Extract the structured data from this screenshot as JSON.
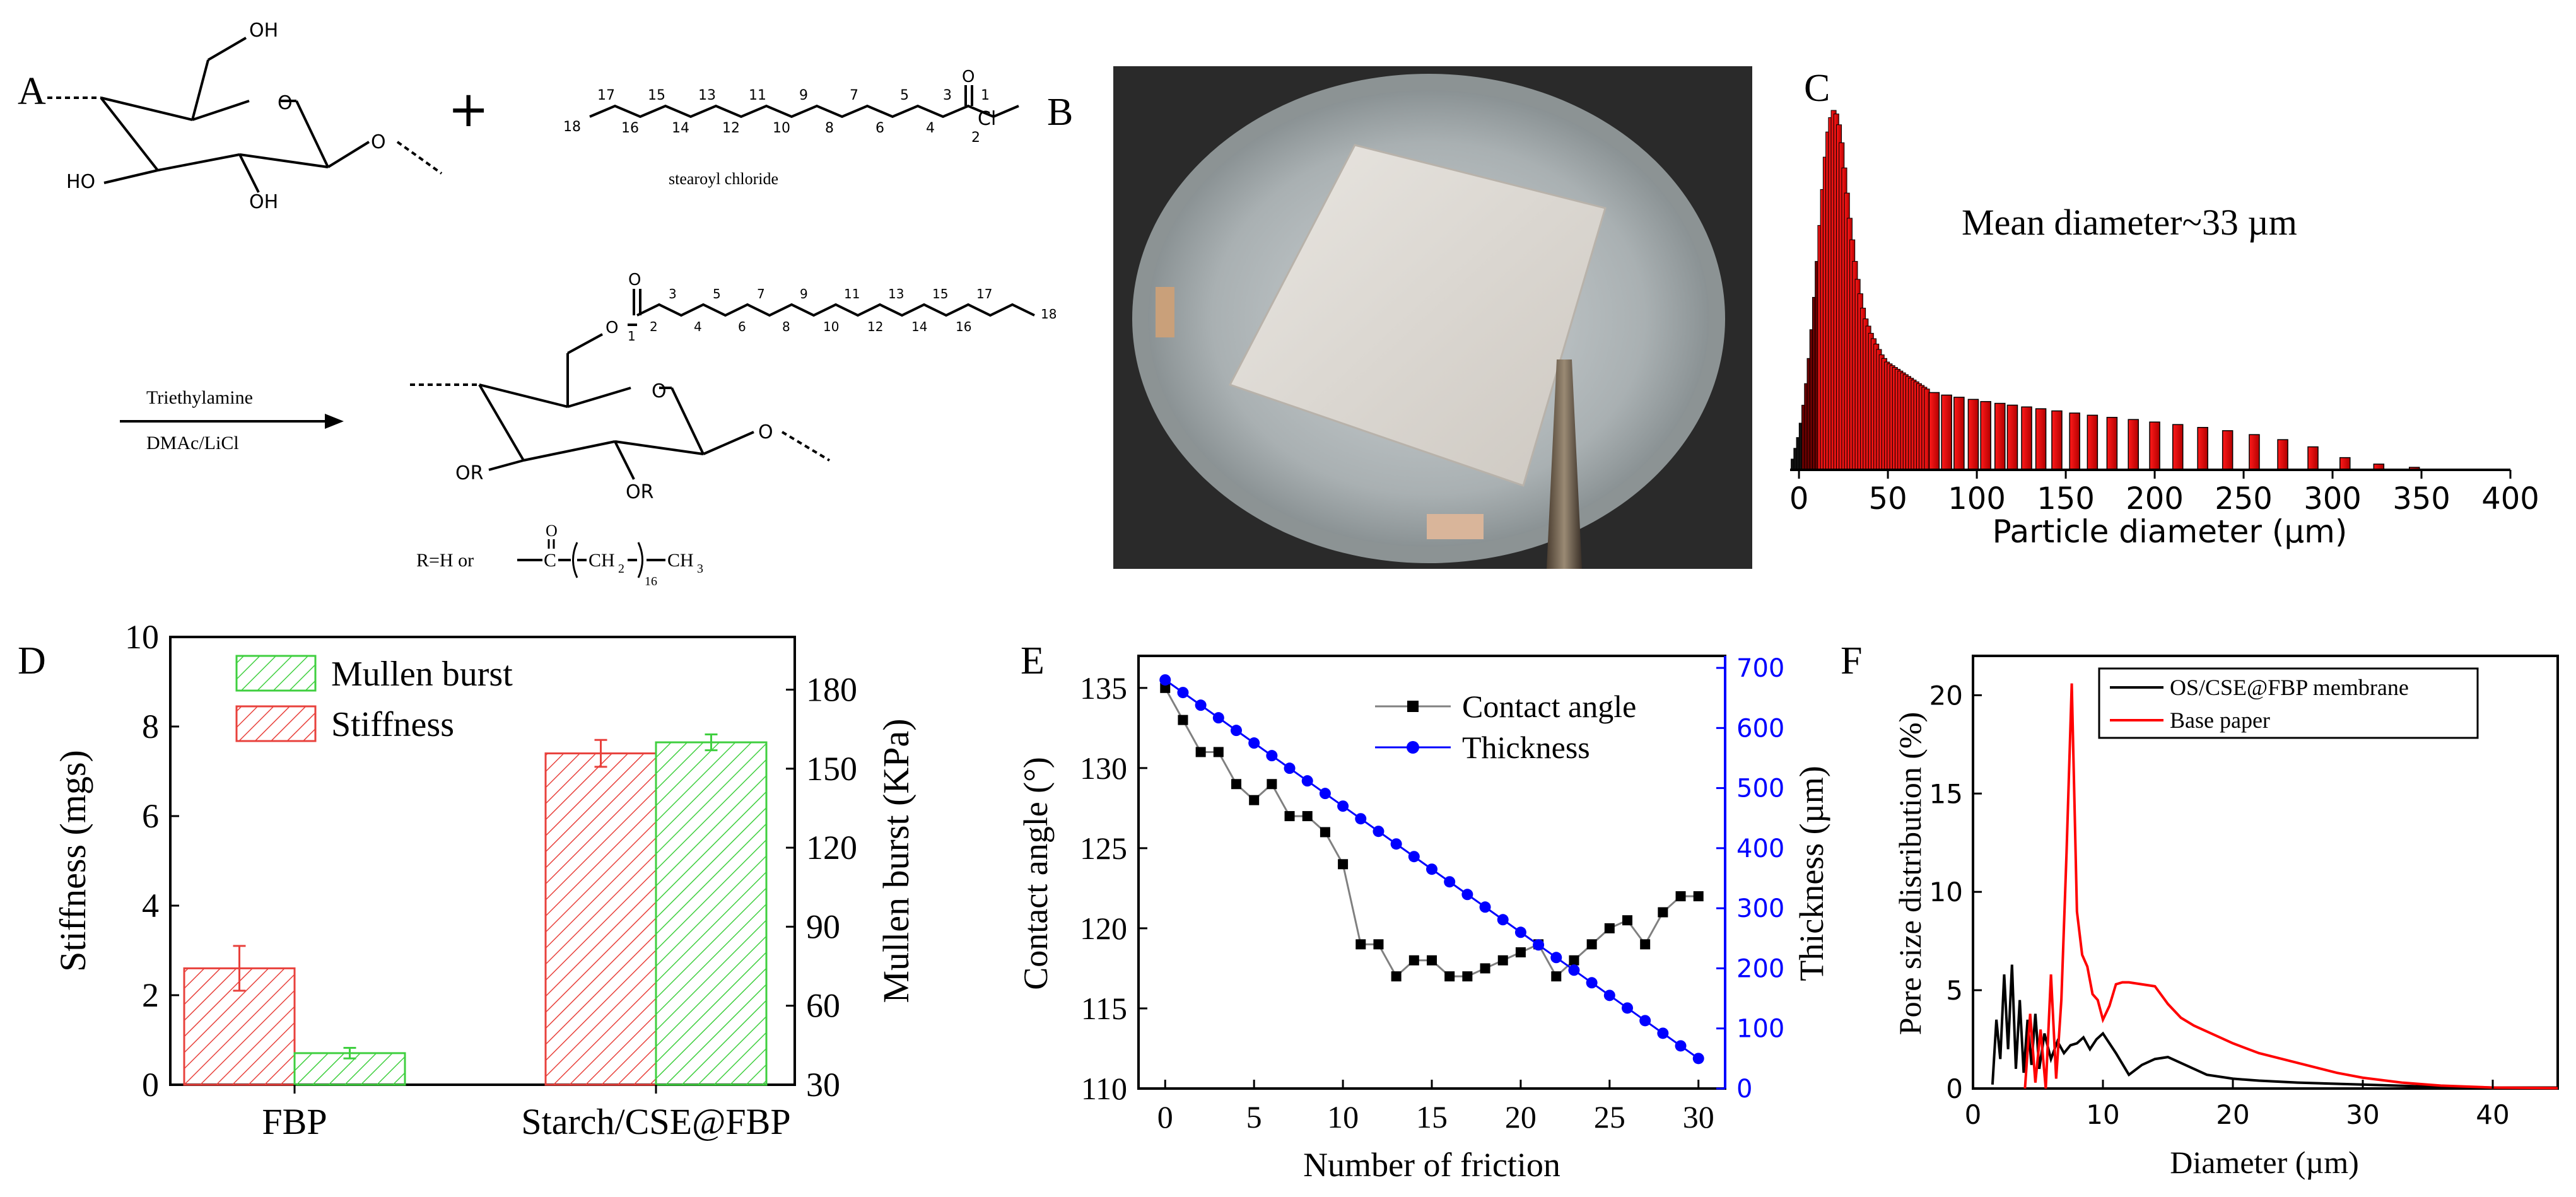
{
  "panels": {
    "A": {
      "label": "A",
      "reagent_name": "stearoyl chloride",
      "reagent_carbons_top": [
        "17",
        "15",
        "13",
        "11",
        "9",
        "7",
        "5",
        "3",
        "1"
      ],
      "reagent_carbons_bottom": [
        "18",
        "16",
        "14",
        "12",
        "10",
        "8",
        "6",
        "4",
        "2"
      ],
      "reagent_cl": "Cl",
      "reagent_o": "O",
      "plus": "+",
      "cellulose_oh_top": "OH",
      "cellulose_oh_left": "HO",
      "cellulose_oh_bottom": "OH",
      "ring_o": "O",
      "reaction_reagent": "Triethylamine",
      "reaction_solvent": "DMAc/LiCl",
      "product_chain_top": [
        "3",
        "5",
        "7",
        "9",
        "11",
        "13",
        "15",
        "17"
      ],
      "product_chain_bottom": [
        "2",
        "4",
        "6",
        "8",
        "10",
        "12",
        "14",
        "16",
        "18"
      ],
      "product_c1": "1",
      "product_o": "O",
      "product_or_left": "OR",
      "product_or_bottom": "OR",
      "r_definition": "R=H or",
      "r_c": "C",
      "r_o": "O",
      "r_ch2": "CH",
      "r_ch2_sub": "2",
      "r_repeat": "16",
      "r_ch3": "CH",
      "r_ch3_sub": "3"
    },
    "B": {
      "label": "B"
    },
    "C": {
      "label": "C"
    },
    "D": {
      "label": "D"
    },
    "E": {
      "label": "E"
    },
    "F": {
      "label": "F"
    }
  },
  "chart_data": [
    {
      "panel": "C",
      "type": "bar",
      "annotation": "Mean diameter~33 µm",
      "xlabel": "Particle diameter (µm)",
      "xlim": [
        -5,
        400
      ],
      "xticks": [
        "0",
        "50",
        "100",
        "150",
        "200",
        "250",
        "300",
        "350",
        "400"
      ],
      "dense_bins": {
        "x": [
          -3,
          -1.5,
          0,
          1.5,
          3,
          4.5,
          6,
          7.5,
          9,
          10.5,
          12,
          13.5,
          15,
          16.5,
          18,
          19.5,
          21,
          22.5,
          24,
          25.5,
          27,
          28.5,
          30,
          31.5,
          33,
          34.5,
          36,
          37.5,
          39,
          40.5,
          42,
          43.5,
          45,
          46.5,
          48,
          49.5,
          51,
          52.5,
          54,
          55.5,
          57,
          58.5,
          60,
          61.5,
          63,
          64.5,
          66,
          67.5,
          69,
          70.5,
          72
        ],
        "values": [
          3,
          6,
          9,
          13,
          18,
          24,
          31,
          39,
          48,
          58,
          68,
          78,
          87,
          94,
          98,
          100,
          99,
          96,
          91,
          84,
          77,
          70,
          64,
          58,
          53,
          49,
          45,
          42,
          40,
          38,
          36.5,
          35,
          33.5,
          32,
          31,
          30,
          29.5,
          29,
          28.5,
          28,
          27.5,
          27,
          26.5,
          26,
          25.5,
          25,
          24.5,
          24,
          23.5,
          23,
          22.5
        ]
      },
      "sparse_bins": {
        "x": [
          76,
          83,
          90,
          98,
          105,
          113,
          120,
          128,
          136,
          145,
          155,
          165,
          176,
          188,
          200,
          213,
          227,
          241,
          256,
          272,
          289,
          307,
          326,
          346,
          367
        ],
        "values": [
          21.5,
          20.8,
          20.2,
          19.6,
          19,
          18.5,
          18,
          17.5,
          17,
          16.4,
          15.8,
          15.2,
          14.6,
          14,
          13.3,
          12.6,
          11.8,
          10.9,
          9.8,
          8.4,
          6.4,
          3.4,
          1.6,
          0.7,
          0.2
        ]
      }
    },
    {
      "panel": "D",
      "type": "bar",
      "categories": [
        "FBP",
        "Starch/CSE@FBP"
      ],
      "series": [
        {
          "name": "Stiffness",
          "axis": "left",
          "values": [
            2.6,
            7.4
          ],
          "errors": [
            0.5,
            0.3
          ],
          "color": "#e8413c"
        },
        {
          "name": "Mullen burst",
          "axis": "right",
          "values": [
            42,
            160
          ],
          "errors": [
            2,
            3
          ],
          "color": "#3fcf3f"
        }
      ],
      "legend": [
        "Mullen burst",
        "Stiffness"
      ],
      "ylabel": "Stiffness (mgs)",
      "ylabel_right": "Mullen burst (KPa)",
      "ylim": [
        0,
        10
      ],
      "ylim_right": [
        30,
        200
      ],
      "yticks": [
        "0",
        "2",
        "4",
        "6",
        "8",
        "10"
      ],
      "yticks_right": [
        "30",
        "60",
        "90",
        "120",
        "150",
        "180"
      ]
    },
    {
      "panel": "E",
      "type": "line",
      "x": [
        0,
        1,
        2,
        3,
        4,
        5,
        6,
        7,
        8,
        9,
        10,
        11,
        12,
        13,
        14,
        15,
        16,
        17,
        18,
        19,
        20,
        21,
        22,
        23,
        24,
        25,
        26,
        27,
        28,
        29,
        30
      ],
      "series": [
        {
          "name": "Contact angle",
          "axis": "left",
          "color": "#000000",
          "values": [
            135,
            133,
            131,
            131,
            129,
            128,
            129,
            127,
            127,
            126,
            124,
            119,
            119,
            117,
            118,
            118,
            117,
            117,
            117.5,
            118,
            118.5,
            119,
            117,
            118,
            119,
            120,
            120.5,
            119,
            121,
            122,
            122
          ]
        },
        {
          "name": "Thickness",
          "axis": "right",
          "color": "#0000ff",
          "values": [
            680,
            659,
            638,
            617,
            596,
            575,
            554,
            533,
            512,
            491,
            470,
            449,
            428,
            407,
            386,
            365,
            344,
            323,
            302,
            281,
            260,
            239,
            218,
            197,
            176,
            155,
            134,
            113,
            92,
            71,
            50
          ]
        }
      ],
      "xlabel": "Number of friction",
      "ylabel": "Contact angle (°)",
      "ylabel_right": "Thickness (µm)",
      "xlim": [
        -1.5,
        31.5
      ],
      "ylim": [
        110,
        137
      ],
      "ylim_right": [
        0,
        720
      ],
      "xticks": [
        "0",
        "5",
        "10",
        "15",
        "20",
        "25",
        "30"
      ],
      "yticks": [
        "110",
        "115",
        "120",
        "125",
        "130",
        "135"
      ],
      "yticks_right": [
        "0",
        "100",
        "200",
        "300",
        "400",
        "500",
        "600",
        "700"
      ]
    },
    {
      "panel": "F",
      "type": "line",
      "series": [
        {
          "name": "OS/CSE@FBP membrane",
          "color": "#000000",
          "x": [
            1.5,
            1.8,
            2.1,
            2.4,
            2.7,
            3.0,
            3.3,
            3.6,
            3.9,
            4.2,
            4.5,
            4.8,
            5.1,
            5.5,
            6.0,
            6.5,
            7.0,
            7.5,
            8.0,
            8.5,
            9.0,
            9.5,
            10,
            11,
            12,
            13,
            14,
            15,
            16,
            17,
            18,
            20,
            22,
            25,
            30,
            35,
            40,
            45
          ],
          "values": [
            0.2,
            3.5,
            1.5,
            5.8,
            2,
            6.3,
            1,
            4.5,
            0.8,
            3.5,
            1.2,
            3.8,
            1,
            2.8,
            1.5,
            2.4,
            1.8,
            2.2,
            2.3,
            2.6,
            2.0,
            2.5,
            2.8,
            1.8,
            0.7,
            1.2,
            1.5,
            1.6,
            1.3,
            1.0,
            0.7,
            0.5,
            0.4,
            0.3,
            0.2,
            0.1,
            0.05,
            0.05
          ]
        },
        {
          "name": "Base paper",
          "color": "#ff0000",
          "x": [
            4.0,
            4.4,
            4.8,
            5.2,
            5.6,
            6.0,
            6.4,
            6.8,
            7.2,
            7.6,
            8.0,
            8.4,
            8.8,
            9.2,
            9.6,
            10,
            10.5,
            11,
            11.5,
            12,
            13,
            14,
            15,
            16,
            17,
            18,
            20,
            22,
            25,
            28,
            30,
            33,
            36,
            40,
            45
          ],
          "values": [
            0,
            3.8,
            0.3,
            3.0,
            0,
            5.8,
            0.5,
            4.5,
            12.0,
            20.6,
            9.0,
            6.8,
            6.2,
            4.8,
            4.5,
            3.5,
            4.2,
            5.3,
            5.4,
            5.4,
            5.3,
            5.2,
            4.3,
            3.6,
            3.2,
            2.9,
            2.3,
            1.8,
            1.3,
            0.8,
            0.55,
            0.3,
            0.15,
            0.05,
            0.02
          ]
        }
      ],
      "xlabel": "Diameter (µm)",
      "ylabel": "Pore size distribution (%)",
      "xlim": [
        0,
        45
      ],
      "ylim": [
        0,
        22
      ],
      "xticks": [
        "0",
        "10",
        "20",
        "30",
        "40"
      ],
      "yticks": [
        "0",
        "5",
        "10",
        "15",
        "20"
      ]
    }
  ]
}
